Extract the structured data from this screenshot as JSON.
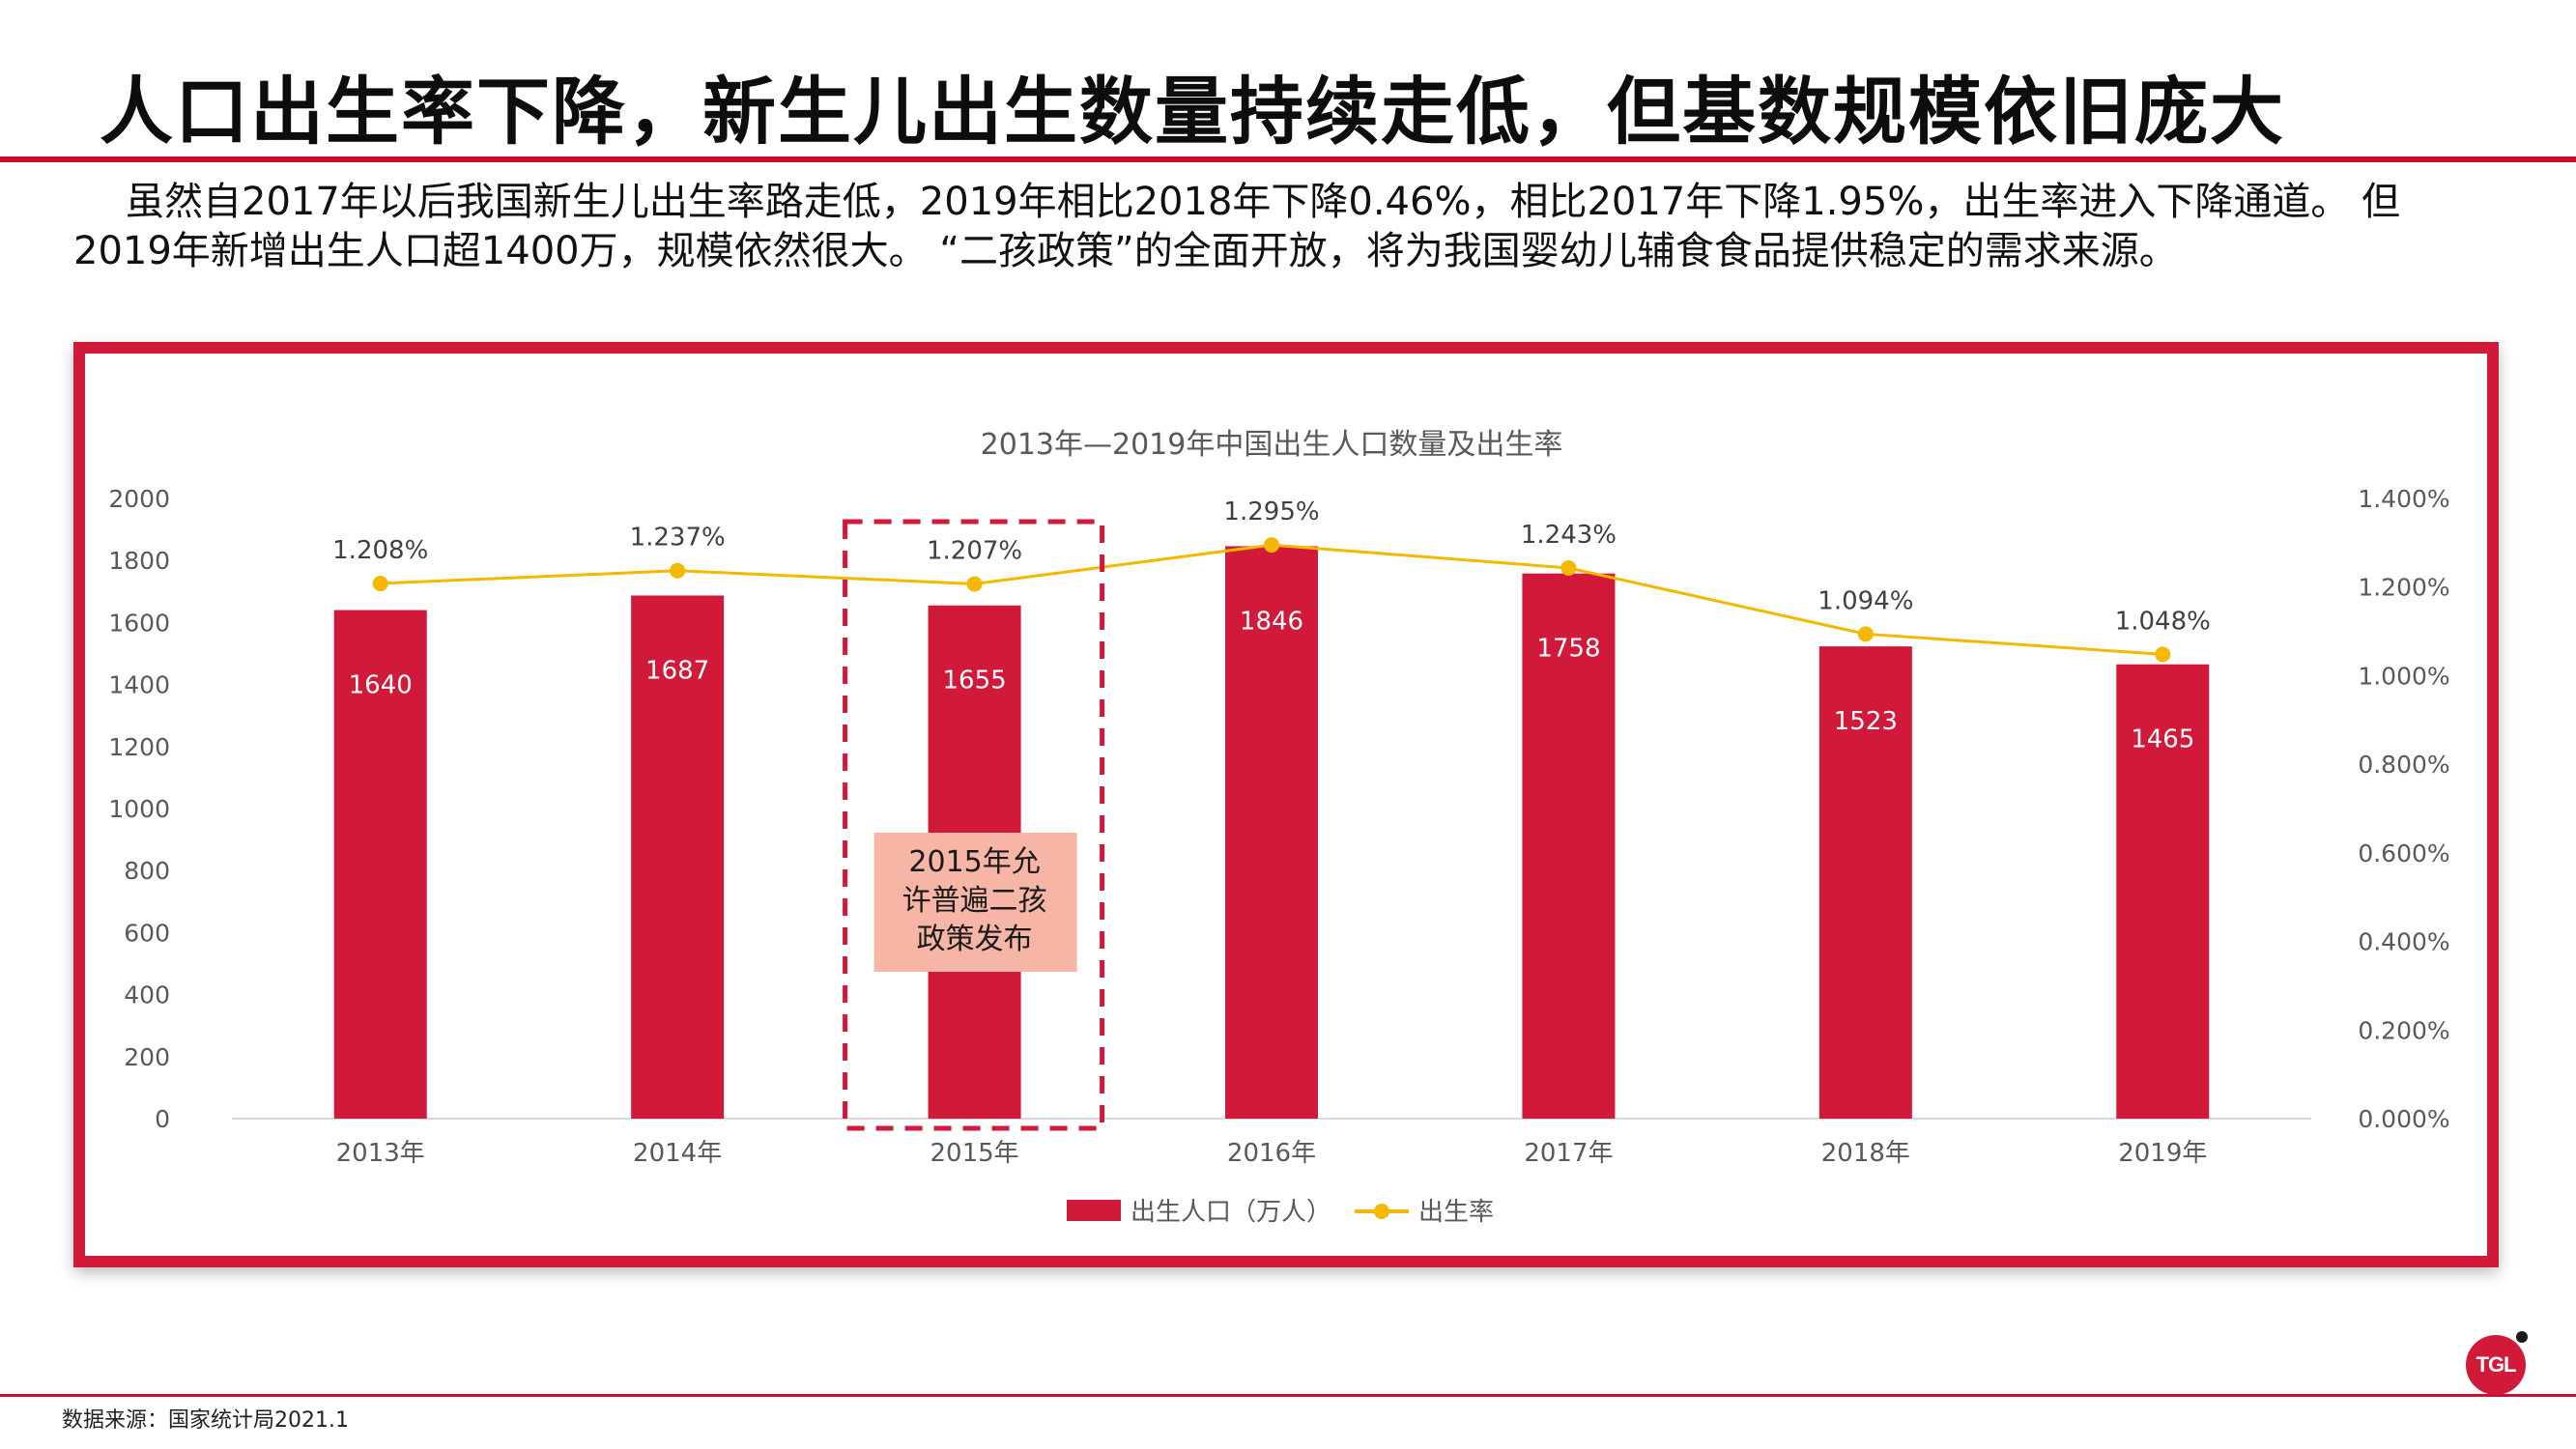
{
  "header": {
    "title": "人口出生率下降，新生儿出生数量持续走低，但基数规模依旧庞大",
    "intro": "虽然自2017年以后我国新生儿出生率路走低，2019年相比2018年下降0.46%，相比2017年下降1.95%，出生率进入下降通道。 但2019年新增出生人口超1400万，规模依然很大。 “二孩政策”的全面开放，将为我国婴幼儿辅食食品提供稳定的需求来源。"
  },
  "colors": {
    "accent": "#c8102e",
    "bar": "#d11a3a",
    "line": "#f5b800",
    "annotation_fill": "#f7b5a6"
  },
  "chart_data": {
    "type": "bar",
    "title": "2013年—2019年中国出生人口数量及出生率",
    "categories": [
      "2013年",
      "2014年",
      "2015年",
      "2016年",
      "2017年",
      "2018年",
      "2019年"
    ],
    "series": [
      {
        "name": "出生人口（万人）",
        "type": "bar",
        "axis": "left",
        "values": [
          1640,
          1687,
          1655,
          1846,
          1758,
          1523,
          1465
        ]
      },
      {
        "name": "出生率",
        "type": "line",
        "axis": "right",
        "values": [
          1.208,
          1.237,
          1.207,
          1.295,
          1.243,
          1.094,
          1.048
        ],
        "labels": [
          "1.208%",
          "1.237%",
          "1.207%",
          "1.295%",
          "1.243%",
          "1.094%",
          "1.048%"
        ]
      }
    ],
    "left_axis": {
      "ylim": [
        0,
        2000
      ],
      "ticks": [
        "0",
        "200",
        "400",
        "600",
        "800",
        "1000",
        "1200",
        "1400",
        "1600",
        "1800",
        "2000"
      ]
    },
    "right_axis": {
      "ylim": [
        0,
        1.4
      ],
      "ticks": [
        "0.000%",
        "0.200%",
        "0.400%",
        "0.600%",
        "0.800%",
        "1.000%",
        "1.200%",
        "1.400%"
      ]
    },
    "grid": false,
    "legend": "bottom",
    "annotation": {
      "category": "2015年",
      "text_lines": [
        "2015年允",
        "许普遍二孩",
        "政策发布"
      ]
    }
  },
  "footer": {
    "source": "数据来源：国家统计局2021.1",
    "logo_text": "TGL"
  }
}
